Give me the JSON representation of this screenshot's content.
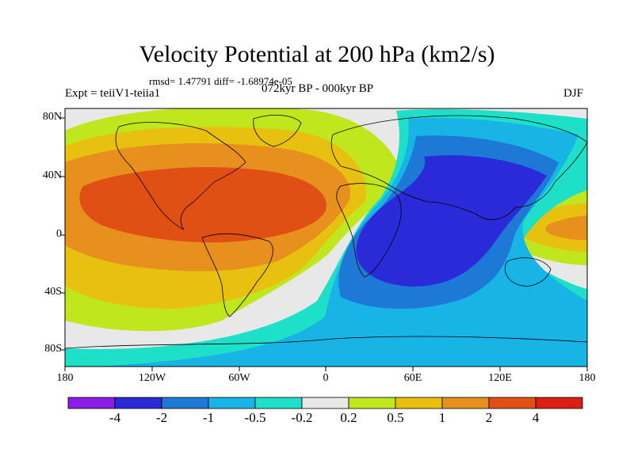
{
  "header": {
    "title": "Velocity Potential at 200 hPa (km2/s)",
    "stats": "rmsd= 1.47791 diff= -1.68974e-05",
    "experiment": "Expt = teiiV1-teiia1",
    "period": "072kyr BP - 000kyr BP",
    "season": "DJF"
  },
  "map": {
    "lat_ticks": [
      "80N",
      "40N",
      "0",
      "40S",
      "80S"
    ],
    "lon_ticks": [
      "180",
      "120W",
      "60W",
      "0",
      "60E",
      "120E",
      "180"
    ]
  },
  "colorbar": {
    "labels": [
      "-4",
      "-2",
      "-1",
      "-0.5",
      "-0.2",
      "0.2",
      "0.5",
      "1",
      "2",
      "4"
    ],
    "colors": [
      "#8a1ee6",
      "#2a2ad8",
      "#1e78d6",
      "#18b4e6",
      "#1ee0c8",
      "#e8e8e8",
      "#c0e61e",
      "#e8c010",
      "#e8901e",
      "#e05014",
      "#dc1e14"
    ]
  }
}
